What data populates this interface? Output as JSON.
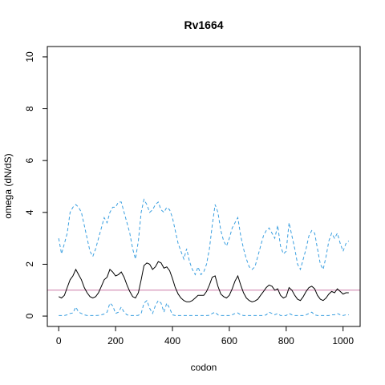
{
  "chart_data": {
    "type": "line",
    "title": "Rv1664",
    "xlabel": "codon",
    "ylabel": "omega (dN/dS)",
    "xlim": [
      -40,
      1060
    ],
    "ylim": [
      -0.4,
      10.4
    ],
    "xticks": [
      0,
      200,
      400,
      600,
      800,
      1000
    ],
    "yticks": [
      0,
      2,
      4,
      6,
      8,
      10
    ],
    "grid": false,
    "reference_line": {
      "y": 1,
      "color": "#cc79a7"
    },
    "series": [
      {
        "role": "upper",
        "color": "#3a9fe0",
        "style": "dashed",
        "x": [
          0,
          10,
          20,
          30,
          40,
          50,
          60,
          70,
          80,
          90,
          100,
          110,
          120,
          130,
          140,
          150,
          160,
          170,
          180,
          190,
          200,
          210,
          220,
          230,
          240,
          250,
          260,
          270,
          280,
          290,
          300,
          310,
          320,
          330,
          340,
          350,
          360,
          370,
          380,
          390,
          400,
          410,
          420,
          430,
          440,
          450,
          460,
          470,
          480,
          490,
          500,
          510,
          520,
          530,
          540,
          550,
          560,
          570,
          580,
          590,
          600,
          610,
          620,
          630,
          640,
          650,
          660,
          670,
          680,
          690,
          700,
          710,
          720,
          730,
          740,
          750,
          760,
          770,
          780,
          790,
          800,
          810,
          820,
          830,
          840,
          850,
          860,
          870,
          880,
          890,
          900,
          910,
          920,
          930,
          940,
          950,
          960,
          970,
          980,
          990,
          1000,
          1010,
          1020
        ],
        "values": [
          3.0,
          2.4,
          2.8,
          3.2,
          4.0,
          4.2,
          4.3,
          4.2,
          4.0,
          3.5,
          3.0,
          2.5,
          2.3,
          2.6,
          3.0,
          3.4,
          3.8,
          3.6,
          4.0,
          4.2,
          4.2,
          4.4,
          4.4,
          4.0,
          3.6,
          3.2,
          2.6,
          2.2,
          2.9,
          4.0,
          4.5,
          4.3,
          4.0,
          4.1,
          4.3,
          4.4,
          4.1,
          4.0,
          4.2,
          4.1,
          3.8,
          3.3,
          2.8,
          2.5,
          2.2,
          2.6,
          2.1,
          1.8,
          1.6,
          1.9,
          1.6,
          1.7,
          2.0,
          2.6,
          3.5,
          4.3,
          4.0,
          3.3,
          2.9,
          2.7,
          3.0,
          3.4,
          3.6,
          3.8,
          3.1,
          2.6,
          2.2,
          1.9,
          1.8,
          1.9,
          2.3,
          2.7,
          3.1,
          3.3,
          3.4,
          3.2,
          3.0,
          3.5,
          2.7,
          2.4,
          2.5,
          3.6,
          3.1,
          2.6,
          2.0,
          1.8,
          2.2,
          2.6,
          3.1,
          3.3,
          3.2,
          2.6,
          2.0,
          1.8,
          2.3,
          2.9,
          3.2,
          3.0,
          3.2,
          2.8,
          2.5,
          2.8,
          2.9
        ]
      },
      {
        "role": "mean",
        "color": "#000000",
        "style": "solid",
        "x": [
          0,
          10,
          20,
          30,
          40,
          50,
          60,
          70,
          80,
          90,
          100,
          110,
          120,
          130,
          140,
          150,
          160,
          170,
          180,
          190,
          200,
          210,
          220,
          230,
          240,
          250,
          260,
          270,
          280,
          290,
          300,
          310,
          320,
          330,
          340,
          350,
          360,
          370,
          380,
          390,
          400,
          410,
          420,
          430,
          440,
          450,
          460,
          470,
          480,
          490,
          500,
          510,
          520,
          530,
          540,
          550,
          560,
          570,
          580,
          590,
          600,
          610,
          620,
          630,
          640,
          650,
          660,
          670,
          680,
          690,
          700,
          710,
          720,
          730,
          740,
          750,
          760,
          770,
          780,
          790,
          800,
          810,
          820,
          830,
          840,
          850,
          860,
          870,
          880,
          890,
          900,
          910,
          920,
          930,
          940,
          950,
          960,
          970,
          980,
          990,
          1000,
          1010,
          1020
        ],
        "values": [
          0.75,
          0.7,
          0.8,
          1.1,
          1.4,
          1.55,
          1.8,
          1.6,
          1.4,
          1.1,
          0.9,
          0.75,
          0.7,
          0.75,
          0.9,
          1.15,
          1.4,
          1.5,
          1.8,
          1.7,
          1.55,
          1.6,
          1.7,
          1.5,
          1.2,
          0.95,
          0.75,
          0.7,
          0.9,
          1.4,
          1.95,
          2.05,
          2.0,
          1.8,
          1.9,
          2.1,
          2.05,
          1.85,
          1.9,
          1.75,
          1.45,
          1.1,
          0.85,
          0.7,
          0.6,
          0.55,
          0.55,
          0.6,
          0.7,
          0.8,
          0.8,
          0.8,
          0.95,
          1.2,
          1.5,
          1.55,
          1.15,
          0.85,
          0.75,
          0.7,
          0.8,
          1.05,
          1.35,
          1.55,
          1.2,
          0.9,
          0.7,
          0.6,
          0.55,
          0.58,
          0.65,
          0.8,
          0.95,
          1.1,
          1.2,
          1.15,
          1.0,
          1.05,
          0.8,
          0.7,
          0.75,
          1.1,
          1.0,
          0.8,
          0.65,
          0.6,
          0.75,
          0.95,
          1.1,
          1.15,
          1.05,
          0.8,
          0.65,
          0.6,
          0.7,
          0.85,
          0.95,
          0.9,
          1.05,
          0.95,
          0.85,
          0.9,
          0.9
        ]
      },
      {
        "role": "lower",
        "color": "#3a9fe0",
        "style": "dashed",
        "x": [
          0,
          10,
          20,
          30,
          40,
          50,
          60,
          70,
          80,
          90,
          100,
          110,
          120,
          130,
          140,
          150,
          160,
          170,
          180,
          190,
          200,
          210,
          220,
          230,
          240,
          250,
          260,
          270,
          280,
          290,
          300,
          310,
          320,
          330,
          340,
          350,
          360,
          370,
          380,
          390,
          400,
          410,
          420,
          430,
          440,
          450,
          460,
          470,
          480,
          490,
          500,
          510,
          520,
          530,
          540,
          550,
          560,
          570,
          580,
          590,
          600,
          610,
          620,
          630,
          640,
          650,
          660,
          670,
          680,
          690,
          700,
          710,
          720,
          730,
          740,
          750,
          760,
          770,
          780,
          790,
          800,
          810,
          820,
          830,
          840,
          850,
          860,
          870,
          880,
          890,
          900,
          910,
          920,
          930,
          940,
          950,
          960,
          970,
          980,
          990,
          1000,
          1010,
          1020
        ],
        "values": [
          0.02,
          0.02,
          0.02,
          0.05,
          0.1,
          0.12,
          0.35,
          0.15,
          0.1,
          0.05,
          0.02,
          0.02,
          0.02,
          0.02,
          0.03,
          0.05,
          0.08,
          0.15,
          0.5,
          0.4,
          0.1,
          0.15,
          0.35,
          0.15,
          0.05,
          0.02,
          0.02,
          0.02,
          0.03,
          0.1,
          0.5,
          0.6,
          0.3,
          0.1,
          0.4,
          0.6,
          0.5,
          0.15,
          0.5,
          0.3,
          0.05,
          0.02,
          0.02,
          0.02,
          0.02,
          0.02,
          0.02,
          0.02,
          0.02,
          0.02,
          0.02,
          0.02,
          0.02,
          0.03,
          0.1,
          0.15,
          0.05,
          0.02,
          0.02,
          0.02,
          0.02,
          0.05,
          0.1,
          0.12,
          0.05,
          0.02,
          0.02,
          0.02,
          0.02,
          0.02,
          0.02,
          0.02,
          0.02,
          0.05,
          0.15,
          0.1,
          0.05,
          0.1,
          0.02,
          0.02,
          0.02,
          0.1,
          0.05,
          0.02,
          0.02,
          0.02,
          0.02,
          0.05,
          0.1,
          0.15,
          0.05,
          0.02,
          0.02,
          0.02,
          0.02,
          0.02,
          0.05,
          0.05,
          0.1,
          0.05,
          0.02,
          0.05,
          0.05
        ]
      }
    ]
  }
}
